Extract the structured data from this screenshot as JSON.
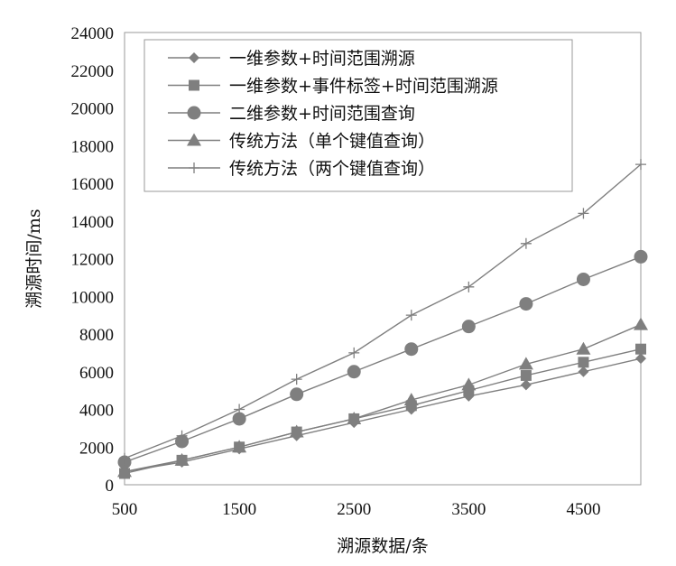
{
  "chart_data": {
    "type": "line",
    "title": "",
    "xlabel": "溯源数据/条",
    "ylabel": "溯源时间/ms",
    "x": [
      500,
      1000,
      1500,
      2000,
      2500,
      3000,
      3500,
      4000,
      4500,
      5000
    ],
    "x_ticks": [
      500,
      1500,
      2500,
      3500,
      4500
    ],
    "xlim": [
      500,
      5000
    ],
    "ylim": [
      0,
      24000
    ],
    "y_ticks": [
      0,
      2000,
      4000,
      6000,
      8000,
      10000,
      12000,
      14000,
      16000,
      18000,
      20000,
      22000,
      24000
    ],
    "grid": false,
    "legend_position": "top-left",
    "series": [
      {
        "name": "一维参数+时间范围溯源",
        "marker": "diamond",
        "color": "#7f7f7f",
        "values": [
          700,
          1200,
          1900,
          2600,
          3300,
          4000,
          4700,
          5300,
          6000,
          6700
        ]
      },
      {
        "name": "一维参数+事件标签+时间范围溯源",
        "marker": "square",
        "color": "#7f7f7f",
        "values": [
          600,
          1300,
          2000,
          2800,
          3500,
          4200,
          5000,
          5800,
          6500,
          7200
        ]
      },
      {
        "name": "二维参数+时间范围查询",
        "marker": "circle",
        "color": "#7f7f7f",
        "values": [
          1200,
          2300,
          3500,
          4800,
          6000,
          7200,
          8400,
          9600,
          10900,
          12100
        ]
      },
      {
        "name": "传统方法（单个键值查询）",
        "marker": "triangle",
        "color": "#7f7f7f",
        "values": [
          700,
          1300,
          2000,
          2800,
          3500,
          4500,
          5300,
          6400,
          7200,
          8500
        ]
      },
      {
        "name": "传统方法（两个键值查询）",
        "marker": "plus",
        "color": "#7f7f7f",
        "values": [
          1400,
          2600,
          4000,
          5600,
          7000,
          9000,
          10500,
          12800,
          14400,
          17000
        ]
      }
    ]
  }
}
